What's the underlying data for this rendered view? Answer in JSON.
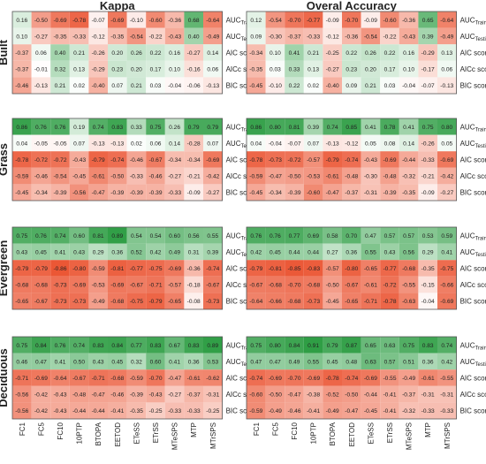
{
  "chart_data": {
    "type": "heatmap",
    "panels": [
      "Kappa",
      "Overal Accuracy"
    ],
    "groups": [
      "Built",
      "Grass",
      "Evergreen",
      "Deciduous"
    ],
    "x_labels": [
      "FC1",
      "FC5",
      "FC10",
      "10PTP",
      "BTOPA",
      "EETOD",
      "ETeSS",
      "ETrSS",
      "MTeSPS",
      "MTP",
      "MTrSPS"
    ],
    "row_labels": [
      {
        "base": "AUC",
        "sub": "Training"
      },
      {
        "base": "AUC",
        "sub": "Testing"
      },
      {
        "base": "AIC score",
        "sub": ""
      },
      {
        "base": "AICc score",
        "sub": ""
      },
      {
        "base": "BIC score",
        "sub": ""
      }
    ],
    "color_scale": {
      "negative": "#ea4f2c",
      "zero": "#ffffff",
      "positive": "#2f9e45"
    },
    "values": {
      "Kappa": {
        "Built": [
          [
            0.16,
            -0.5,
            -0.69,
            -0.78,
            -0.07,
            -0.69,
            -0.1,
            -0.6,
            -0.36,
            0.68,
            -0.64
          ],
          [
            0.1,
            -0.27,
            -0.35,
            -0.33,
            -0.12,
            -0.35,
            -0.54,
            -0.22,
            -0.43,
            0.4,
            -0.49
          ],
          [
            -0.37,
            0.06,
            0.4,
            0.21,
            -0.26,
            0.2,
            0.26,
            0.22,
            0.16,
            -0.27,
            0.14
          ],
          [
            -0.37,
            -0.01,
            0.32,
            0.13,
            -0.29,
            0.23,
            0.2,
            0.17,
            0.1,
            -0.16,
            0.06
          ],
          [
            -0.46,
            -0.13,
            0.21,
            0.02,
            -0.4,
            0.07,
            0.21,
            0.03,
            -0.04,
            -0.06,
            -0.13
          ]
        ],
        "Grass": [
          [
            0.86,
            0.76,
            0.76,
            0.19,
            0.74,
            0.83,
            0.33,
            0.75,
            0.26,
            0.79,
            0.79
          ],
          [
            0.04,
            -0.05,
            -0.05,
            0.07,
            -0.13,
            -0.13,
            0.02,
            0.06,
            0.14,
            -0.28,
            0.07
          ],
          [
            -0.78,
            -0.72,
            -0.72,
            -0.43,
            -0.79,
            -0.74,
            -0.46,
            -0.67,
            -0.34,
            -0.34,
            -0.69
          ],
          [
            -0.59,
            -0.46,
            -0.54,
            -0.45,
            -0.61,
            -0.5,
            -0.33,
            -0.46,
            -0.27,
            -0.21,
            -0.42
          ],
          [
            -0.45,
            -0.34,
            -0.39,
            -0.56,
            -0.47,
            -0.39,
            -0.39,
            -0.39,
            -0.33,
            -0.09,
            -0.27
          ]
        ],
        "Evergreen": [
          [
            0.75,
            0.76,
            0.74,
            0.6,
            0.81,
            0.89,
            0.54,
            0.54,
            0.6,
            0.56,
            0.55
          ],
          [
            0.43,
            0.45,
            0.41,
            0.43,
            0.29,
            0.36,
            0.52,
            0.42,
            0.49,
            0.31,
            0.39
          ],
          [
            -0.79,
            -0.79,
            -0.86,
            -0.8,
            -0.59,
            -0.81,
            -0.77,
            -0.75,
            -0.69,
            -0.36,
            -0.74
          ],
          [
            -0.68,
            -0.68,
            -0.73,
            -0.69,
            -0.53,
            -0.69,
            -0.67,
            -0.71,
            -0.57,
            -0.18,
            -0.67
          ],
          [
            -0.65,
            -0.67,
            -0.73,
            -0.73,
            -0.49,
            -0.68,
            -0.75,
            -0.79,
            -0.65,
            -0.08,
            -0.73
          ]
        ],
        "Deciduous": [
          [
            0.75,
            0.84,
            0.76,
            0.74,
            0.83,
            0.84,
            0.77,
            0.83,
            0.67,
            0.83,
            0.89
          ],
          [
            0.46,
            0.47,
            0.41,
            0.5,
            0.43,
            0.45,
            0.32,
            0.6,
            0.41,
            0.36,
            0.53
          ],
          [
            -0.71,
            -0.69,
            -0.64,
            -0.67,
            -0.71,
            -0.68,
            -0.59,
            -0.7,
            -0.47,
            -0.61,
            -0.62
          ],
          [
            -0.56,
            -0.42,
            -0.43,
            -0.48,
            -0.47,
            -0.46,
            -0.39,
            -0.43,
            -0.27,
            -0.37,
            -0.31
          ],
          [
            -0.56,
            -0.42,
            -0.43,
            -0.44,
            -0.44,
            -0.41,
            -0.35,
            -0.25,
            -0.33,
            -0.33,
            -0.25
          ]
        ]
      },
      "Overal Accuracy": {
        "Built": [
          [
            0.12,
            -0.54,
            -0.7,
            -0.77,
            -0.09,
            -0.7,
            -0.09,
            -0.6,
            -0.36,
            0.65,
            -0.64
          ],
          [
            0.09,
            -0.3,
            -0.37,
            -0.33,
            -0.12,
            -0.36,
            -0.54,
            -0.22,
            -0.43,
            0.39,
            -0.49
          ],
          [
            -0.34,
            0.1,
            0.41,
            0.21,
            -0.25,
            0.22,
            0.26,
            0.22,
            0.16,
            -0.29,
            0.13
          ],
          [
            -0.35,
            0.03,
            0.33,
            0.13,
            -0.27,
            0.23,
            0.2,
            0.17,
            0.1,
            -0.17,
            0.06
          ],
          [
            -0.45,
            -0.1,
            0.22,
            0.02,
            -0.4,
            0.09,
            0.21,
            0.03,
            -0.04,
            -0.07,
            -0.13
          ]
        ],
        "Grass": [
          [
            0.86,
            0.8,
            0.81,
            0.39,
            0.74,
            0.85,
            0.41,
            0.78,
            0.41,
            0.75,
            0.8
          ],
          [
            0.04,
            -0.04,
            -0.07,
            0.07,
            -0.13,
            -0.12,
            0.05,
            0.08,
            0.14,
            -0.26,
            0.05
          ],
          [
            -0.78,
            -0.73,
            -0.72,
            -0.57,
            -0.79,
            -0.74,
            -0.43,
            -0.69,
            -0.44,
            -0.33,
            -0.69
          ],
          [
            -0.59,
            -0.47,
            -0.5,
            -0.53,
            -0.61,
            -0.48,
            -0.3,
            -0.48,
            -0.32,
            -0.21,
            -0.42
          ],
          [
            -0.45,
            -0.34,
            -0.39,
            -0.6,
            -0.47,
            -0.37,
            -0.31,
            -0.39,
            -0.35,
            -0.09,
            -0.27
          ]
        ],
        "Evergreen": [
          [
            0.76,
            0.76,
            0.77,
            0.69,
            0.58,
            0.7,
            0.47,
            0.57,
            0.57,
            0.53,
            0.59
          ],
          [
            0.42,
            0.45,
            0.44,
            0.44,
            0.27,
            0.36,
            0.55,
            0.43,
            0.56,
            0.29,
            0.41
          ],
          [
            -0.79,
            -0.81,
            -0.85,
            -0.83,
            -0.57,
            -0.8,
            -0.65,
            -0.77,
            -0.68,
            -0.35,
            -0.75
          ],
          [
            -0.67,
            -0.68,
            -0.7,
            -0.68,
            -0.5,
            -0.67,
            -0.61,
            -0.72,
            -0.55,
            -0.15,
            -0.66
          ],
          [
            -0.64,
            -0.66,
            -0.68,
            -0.73,
            -0.45,
            -0.65,
            -0.71,
            -0.78,
            -0.63,
            -0.04,
            -0.69
          ]
        ],
        "Deciduous": [
          [
            0.75,
            0.8,
            0.84,
            0.91,
            0.79,
            0.87,
            0.65,
            0.63,
            0.75,
            0.83,
            0.74
          ],
          [
            0.47,
            0.47,
            0.49,
            0.55,
            0.45,
            0.48,
            0.63,
            0.57,
            0.51,
            0.36,
            0.42
          ],
          [
            -0.74,
            -0.69,
            -0.7,
            -0.69,
            -0.78,
            -0.74,
            -0.69,
            -0.55,
            -0.49,
            -0.61,
            -0.55
          ],
          [
            -0.6,
            -0.5,
            -0.47,
            -0.38,
            -0.52,
            -0.5,
            -0.44,
            -0.41,
            -0.37,
            -0.31,
            -0.31
          ],
          [
            -0.59,
            -0.49,
            -0.46,
            -0.41,
            -0.49,
            -0.47,
            -0.45,
            -0.41,
            -0.32,
            -0.33,
            -0.33
          ]
        ]
      }
    }
  }
}
